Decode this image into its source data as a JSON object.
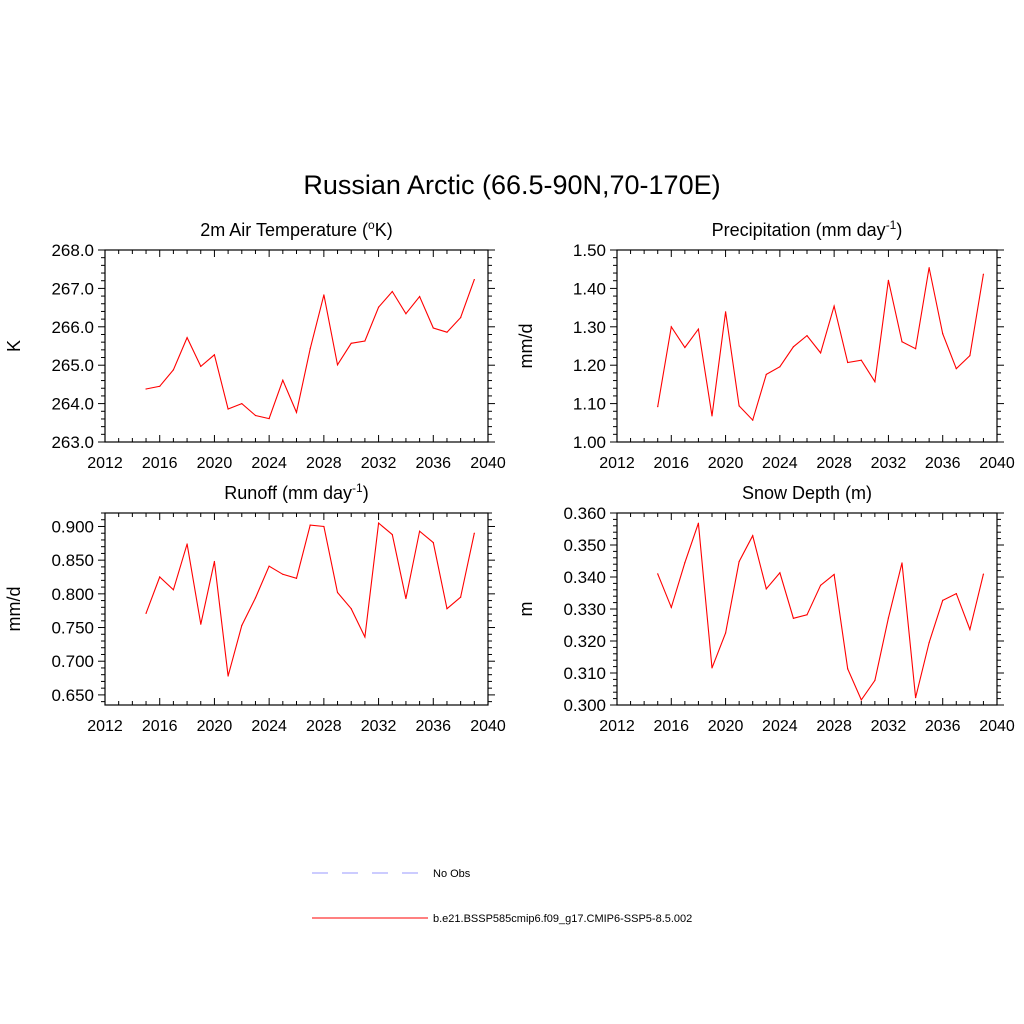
{
  "figure": {
    "title": "Russian Arctic (66.5-90N,70-170E)"
  },
  "colors": {
    "model_line": "#ff0000",
    "obs_line": "#9999ff",
    "axis": "#000000"
  },
  "legend": {
    "placement": "bottom-center",
    "entries": [
      {
        "label": "No Obs",
        "style": "dashed",
        "color": "#9999ff"
      },
      {
        "label": "b.e21.BSSP585cmip6.f09_g17.CMIP6-SSP5-8.5.002",
        "style": "solid",
        "color": "#ff0000"
      }
    ]
  },
  "chart_data": [
    {
      "type": "line",
      "title": "2m Air Temperature (",
      "title_sup": "o",
      "title_tail": "K)",
      "ylabel": "K",
      "xlim": [
        2012,
        2040
      ],
      "ylim": [
        263.0,
        268.0
      ],
      "xticks": [
        2012,
        2016,
        2020,
        2024,
        2028,
        2032,
        2036,
        2040
      ],
      "yticks": [
        263.0,
        264.0,
        265.0,
        266.0,
        267.0,
        268.0
      ],
      "ytick_labels": [
        "263.0",
        "264.0",
        "265.0",
        "266.0",
        "267.0",
        "268.0"
      ],
      "grid": false,
      "x": [
        2015,
        2016,
        2017,
        2018,
        2019,
        2020,
        2021,
        2022,
        2023,
        2024,
        2025,
        2026,
        2027,
        2028,
        2029,
        2030,
        2031,
        2032,
        2033,
        2034,
        2035,
        2036,
        2037,
        2038,
        2039
      ],
      "series": [
        {
          "name": "b.e21.BSSP585cmip6.f09_g17.CMIP6-SSP5-8.5.002",
          "values": [
            264.38,
            264.45,
            264.88,
            265.72,
            264.97,
            265.27,
            263.86,
            264.0,
            263.69,
            263.61,
            264.61,
            263.77,
            265.43,
            266.83,
            265.01,
            265.57,
            265.63,
            266.51,
            266.92,
            266.34,
            266.79,
            265.97,
            265.86,
            266.24,
            267.23
          ]
        }
      ]
    },
    {
      "type": "line",
      "title": "Precipitation (mm day",
      "title_sup": "-1",
      "title_tail": ")",
      "ylabel": "mm/d",
      "xlim": [
        2012,
        2040
      ],
      "ylim": [
        1.0,
        1.5
      ],
      "xticks": [
        2012,
        2016,
        2020,
        2024,
        2028,
        2032,
        2036,
        2040
      ],
      "yticks": [
        1.0,
        1.1,
        1.2,
        1.3,
        1.4,
        1.5
      ],
      "ytick_labels": [
        "1.00",
        "1.10",
        "1.20",
        "1.30",
        "1.40",
        "1.50"
      ],
      "grid": false,
      "x": [
        2015,
        2016,
        2017,
        2018,
        2019,
        2020,
        2021,
        2022,
        2023,
        2024,
        2025,
        2026,
        2027,
        2028,
        2029,
        2030,
        2031,
        2032,
        2033,
        2034,
        2035,
        2036,
        2037,
        2038,
        2039
      ],
      "series": [
        {
          "name": "b.e21.BSSP585cmip6.f09_g17.CMIP6-SSP5-8.5.002",
          "values": [
            1.092,
            1.3,
            1.246,
            1.294,
            1.068,
            1.339,
            1.094,
            1.057,
            1.176,
            1.196,
            1.248,
            1.277,
            1.232,
            1.354,
            1.207,
            1.213,
            1.157,
            1.421,
            1.261,
            1.243,
            1.454,
            1.282,
            1.191,
            1.225,
            1.437
          ]
        }
      ]
    },
    {
      "type": "line",
      "title": "Runoff (mm day",
      "title_sup": "-1",
      "title_tail": ")",
      "ylabel": "mm/d",
      "xlim": [
        2012,
        2040
      ],
      "ylim": [
        0.635,
        0.92
      ],
      "xticks": [
        2012,
        2016,
        2020,
        2024,
        2028,
        2032,
        2036,
        2040
      ],
      "yticks": [
        0.65,
        0.7,
        0.75,
        0.8,
        0.85,
        0.9
      ],
      "ytick_labels": [
        "0.650",
        "0.700",
        "0.750",
        "0.800",
        "0.850",
        "0.900"
      ],
      "grid": false,
      "x": [
        2015,
        2016,
        2017,
        2018,
        2019,
        2020,
        2021,
        2022,
        2023,
        2024,
        2025,
        2026,
        2027,
        2028,
        2029,
        2030,
        2031,
        2032,
        2033,
        2034,
        2035,
        2036,
        2037,
        2038,
        2039
      ],
      "series": [
        {
          "name": "b.e21.BSSP585cmip6.f09_g17.CMIP6-SSP5-8.5.002",
          "values": [
            0.771,
            0.825,
            0.806,
            0.874,
            0.755,
            0.848,
            0.678,
            0.753,
            0.794,
            0.841,
            0.829,
            0.823,
            0.902,
            0.9,
            0.802,
            0.778,
            0.736,
            0.905,
            0.888,
            0.793,
            0.893,
            0.876,
            0.778,
            0.795,
            0.89
          ]
        }
      ]
    },
    {
      "type": "line",
      "title": "Snow Depth (m)",
      "title_sup": "",
      "title_tail": "",
      "ylabel": "m",
      "xlim": [
        2012,
        2040
      ],
      "ylim": [
        0.3,
        0.36
      ],
      "xticks": [
        2012,
        2016,
        2020,
        2024,
        2028,
        2032,
        2036,
        2040
      ],
      "yticks": [
        0.3,
        0.31,
        0.32,
        0.33,
        0.34,
        0.35,
        0.36
      ],
      "ytick_labels": [
        "0.300",
        "0.310",
        "0.320",
        "0.330",
        "0.340",
        "0.350",
        "0.360"
      ],
      "grid": false,
      "x": [
        2015,
        2016,
        2017,
        2018,
        2019,
        2020,
        2021,
        2022,
        2023,
        2024,
        2025,
        2026,
        2027,
        2028,
        2029,
        2030,
        2031,
        2032,
        2033,
        2034,
        2035,
        2036,
        2037,
        2038,
        2039
      ],
      "series": [
        {
          "name": "b.e21.BSSP585cmip6.f09_g17.CMIP6-SSP5-8.5.002",
          "values": [
            0.341,
            0.3305,
            0.3445,
            0.3568,
            0.3116,
            0.3225,
            0.3448,
            0.3529,
            0.3363,
            0.3413,
            0.3271,
            0.3282,
            0.3374,
            0.3408,
            0.3113,
            0.3016,
            0.3077,
            0.3272,
            0.3444,
            0.3023,
            0.3195,
            0.3327,
            0.3348,
            0.3236,
            0.3409
          ]
        }
      ]
    }
  ]
}
